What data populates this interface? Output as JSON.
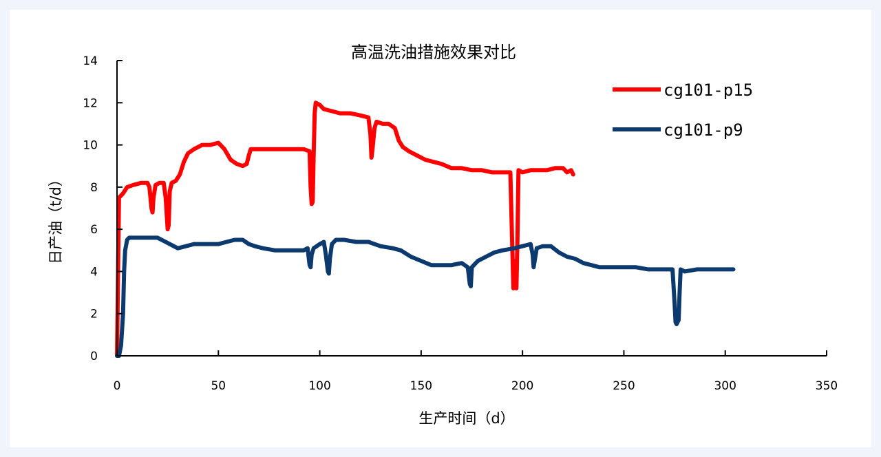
{
  "chart_data": {
    "type": "line",
    "title": "高温洗油措施效果对比",
    "xlabel": "生产时间（d）",
    "ylabel": "日产油（t/d）",
    "xlim": [
      0,
      350
    ],
    "ylim": [
      0,
      14
    ],
    "xticks": [
      "0",
      "50",
      "100",
      "150",
      "200",
      "250",
      "300",
      "350"
    ],
    "yticks": [
      "0",
      "2",
      "4",
      "6",
      "8",
      "10",
      "12",
      "14"
    ],
    "grid": false,
    "legend_position": "top-right",
    "series": [
      {
        "name": "cg101-p15",
        "color": "#ff0000",
        "points": [
          [
            0,
            0
          ],
          [
            0.5,
            4
          ],
          [
            1,
            7.5
          ],
          [
            3,
            7.7
          ],
          [
            5,
            8.0
          ],
          [
            8,
            8.1
          ],
          [
            12,
            8.2
          ],
          [
            15,
            8.2
          ],
          [
            16,
            8.0
          ],
          [
            17,
            7.0
          ],
          [
            17.5,
            6.8
          ],
          [
            18,
            7.5
          ],
          [
            19,
            8.1
          ],
          [
            21,
            8.2
          ],
          [
            23,
            8.2
          ],
          [
            24,
            7.5
          ],
          [
            25,
            6.0
          ],
          [
            25.5,
            6.2
          ],
          [
            26,
            7.8
          ],
          [
            27,
            8.2
          ],
          [
            29,
            8.3
          ],
          [
            31,
            8.6
          ],
          [
            33,
            9.2
          ],
          [
            35,
            9.6
          ],
          [
            38,
            9.8
          ],
          [
            42,
            10.0
          ],
          [
            46,
            10.0
          ],
          [
            50,
            10.1
          ],
          [
            53,
            9.8
          ],
          [
            56,
            9.3
          ],
          [
            59,
            9.1
          ],
          [
            62,
            9.0
          ],
          [
            64,
            9.1
          ],
          [
            65,
            9.5
          ],
          [
            66,
            9.8
          ],
          [
            70,
            9.8
          ],
          [
            78,
            9.8
          ],
          [
            85,
            9.8
          ],
          [
            92,
            9.8
          ],
          [
            95,
            9.7
          ],
          [
            95.5,
            8.0
          ],
          [
            96,
            7.2
          ],
          [
            96.5,
            7.3
          ],
          [
            97,
            9.5
          ],
          [
            97.5,
            11.5
          ],
          [
            98,
            12.0
          ],
          [
            100,
            11.9
          ],
          [
            102,
            11.7
          ],
          [
            106,
            11.6
          ],
          [
            110,
            11.5
          ],
          [
            115,
            11.5
          ],
          [
            120,
            11.4
          ],
          [
            124,
            11.3
          ],
          [
            125,
            10.5
          ],
          [
            125.5,
            9.4
          ],
          [
            126,
            9.8
          ],
          [
            127,
            10.8
          ],
          [
            128,
            11.1
          ],
          [
            131,
            11.0
          ],
          [
            134,
            11.0
          ],
          [
            137,
            10.8
          ],
          [
            139,
            10.2
          ],
          [
            141,
            9.9
          ],
          [
            144,
            9.7
          ],
          [
            148,
            9.5
          ],
          [
            152,
            9.3
          ],
          [
            156,
            9.2
          ],
          [
            160,
            9.1
          ],
          [
            165,
            8.9
          ],
          [
            170,
            8.9
          ],
          [
            175,
            8.8
          ],
          [
            180,
            8.8
          ],
          [
            185,
            8.7
          ],
          [
            190,
            8.7
          ],
          [
            194,
            8.7
          ],
          [
            195,
            5.0
          ],
          [
            195.5,
            3.2
          ],
          [
            196,
            3.5
          ],
          [
            196.5,
            4.5
          ],
          [
            197,
            3.2
          ],
          [
            197.5,
            5.5
          ],
          [
            198,
            8.8
          ],
          [
            200,
            8.7
          ],
          [
            204,
            8.8
          ],
          [
            208,
            8.8
          ],
          [
            212,
            8.8
          ],
          [
            216,
            8.9
          ],
          [
            220,
            8.9
          ],
          [
            222,
            8.7
          ],
          [
            224,
            8.8
          ],
          [
            225,
            8.6
          ]
        ]
      },
      {
        "name": "cg101-p9",
        "color": "#0d3a6e",
        "points": [
          [
            0,
            0
          ],
          [
            1,
            0
          ],
          [
            2,
            0.5
          ],
          [
            3,
            2.0
          ],
          [
            3.5,
            4.0
          ],
          [
            4,
            5.0
          ],
          [
            5,
            5.5
          ],
          [
            6,
            5.6
          ],
          [
            10,
            5.6
          ],
          [
            15,
            5.6
          ],
          [
            20,
            5.6
          ],
          [
            24,
            5.4
          ],
          [
            28,
            5.2
          ],
          [
            30,
            5.1
          ],
          [
            34,
            5.2
          ],
          [
            38,
            5.3
          ],
          [
            44,
            5.3
          ],
          [
            50,
            5.3
          ],
          [
            54,
            5.4
          ],
          [
            58,
            5.5
          ],
          [
            62,
            5.5
          ],
          [
            65,
            5.3
          ],
          [
            68,
            5.2
          ],
          [
            72,
            5.1
          ],
          [
            78,
            5.0
          ],
          [
            85,
            5.0
          ],
          [
            92,
            5.0
          ],
          [
            94,
            5.1
          ],
          [
            95,
            4.3
          ],
          [
            95.5,
            4.2
          ],
          [
            96,
            4.8
          ],
          [
            97,
            5.1
          ],
          [
            100,
            5.3
          ],
          [
            102,
            5.4
          ],
          [
            103,
            4.8
          ],
          [
            104,
            4.0
          ],
          [
            104.5,
            3.9
          ],
          [
            105,
            4.6
          ],
          [
            106,
            5.3
          ],
          [
            108,
            5.5
          ],
          [
            112,
            5.5
          ],
          [
            118,
            5.4
          ],
          [
            124,
            5.4
          ],
          [
            130,
            5.2
          ],
          [
            136,
            5.1
          ],
          [
            140,
            5.0
          ],
          [
            145,
            4.7
          ],
          [
            150,
            4.5
          ],
          [
            155,
            4.3
          ],
          [
            160,
            4.3
          ],
          [
            165,
            4.3
          ],
          [
            170,
            4.4
          ],
          [
            173,
            4.2
          ],
          [
            174,
            3.4
          ],
          [
            174.5,
            3.3
          ],
          [
            175,
            4.2
          ],
          [
            178,
            4.5
          ],
          [
            182,
            4.7
          ],
          [
            186,
            4.9
          ],
          [
            190,
            5.0
          ],
          [
            196,
            5.1
          ],
          [
            200,
            5.2
          ],
          [
            204,
            5.3
          ],
          [
            205,
            4.8
          ],
          [
            205.5,
            4.2
          ],
          [
            206,
            4.5
          ],
          [
            207,
            5.1
          ],
          [
            210,
            5.2
          ],
          [
            214,
            5.2
          ],
          [
            218,
            4.9
          ],
          [
            222,
            4.7
          ],
          [
            226,
            4.6
          ],
          [
            230,
            4.4
          ],
          [
            234,
            4.3
          ],
          [
            238,
            4.2
          ],
          [
            244,
            4.2
          ],
          [
            250,
            4.2
          ],
          [
            256,
            4.2
          ],
          [
            262,
            4.1
          ],
          [
            268,
            4.1
          ],
          [
            272,
            4.1
          ],
          [
            274,
            4.1
          ],
          [
            275,
            2.5
          ],
          [
            275.5,
            1.6
          ],
          [
            276,
            1.5
          ],
          [
            277,
            1.7
          ],
          [
            277.5,
            3.0
          ],
          [
            278,
            4.1
          ],
          [
            280,
            4.0
          ],
          [
            286,
            4.1
          ],
          [
            292,
            4.1
          ],
          [
            298,
            4.1
          ],
          [
            302,
            4.1
          ],
          [
            304,
            4.1
          ]
        ]
      }
    ]
  }
}
